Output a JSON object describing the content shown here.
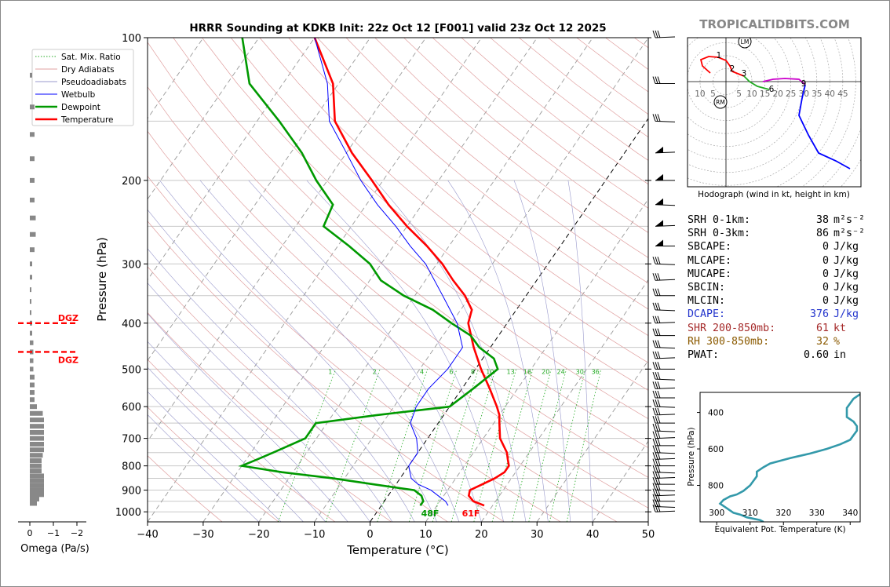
{
  "title": "HRRR Sounding at KDKB Init: 22z Oct 12 [F001] valid 23z Oct 12 2025",
  "watermark": "TROPICALTIDBITS.COM",
  "main": {
    "xlabel": "Temperature (°C)",
    "ylabel": "Pressure (hPa)",
    "xticks": [
      "−40",
      "−30",
      "−20",
      "−10",
      "0",
      "10",
      "20",
      "30",
      "40",
      "50"
    ],
    "yticks": [
      "100",
      "200",
      "300",
      "400",
      "500",
      "600",
      "700",
      "800",
      "900",
      "1000"
    ],
    "surface_temp": "61F",
    "surface_dew": "48F",
    "mixratio_labels": [
      "1",
      "2",
      "4",
      "6",
      "8",
      "10",
      "13",
      "16",
      "20",
      "24",
      "30",
      "36"
    ]
  },
  "legend": {
    "items": [
      "Sat. Mix. Ratio",
      "Dry Adiabats",
      "Pseudoadiabats",
      "Wetbulb",
      "Dewpoint",
      "Temperature"
    ]
  },
  "omega": {
    "xlabel": "Omega (Pa/s)",
    "xticks": [
      "0",
      "−1",
      "−2"
    ],
    "dgz_label": "DGZ"
  },
  "hodograph": {
    "caption": "Hodograph (wind in kt, height in km)",
    "rings": [
      "10",
      "5",
      "5",
      "10",
      "15",
      "20",
      "25",
      "30",
      "35",
      "40",
      "45"
    ],
    "height_labels": [
      "1",
      "2",
      "3",
      "6",
      "9"
    ],
    "markers": [
      "LM",
      "RM"
    ]
  },
  "theta_e": {
    "xlabel": "Equivalent Pot. Temperature (K)",
    "ylabel": "Pressure (hPa)",
    "xticks": [
      "300",
      "310",
      "320",
      "330",
      "340"
    ],
    "yticks": [
      "400",
      "600",
      "800"
    ]
  },
  "stats": [
    {
      "label": "SRH 0-1km:",
      "value": "38",
      "unit": "m²s⁻²",
      "color": "#000000"
    },
    {
      "label": "SRH 0-3km:",
      "value": "86",
      "unit": "m²s⁻²",
      "color": "#000000"
    },
    {
      "label": "SBCAPE:",
      "value": "0",
      "unit": "J/kg",
      "color": "#000000"
    },
    {
      "label": "MLCAPE:",
      "value": "0",
      "unit": "J/kg",
      "color": "#000000"
    },
    {
      "label": "MUCAPE:",
      "value": "0",
      "unit": "J/kg",
      "color": "#000000"
    },
    {
      "label": "SBCIN:",
      "value": "0",
      "unit": "J/kg",
      "color": "#000000"
    },
    {
      "label": "MLCIN:",
      "value": "0",
      "unit": "J/kg",
      "color": "#000000"
    },
    {
      "label": "DCAPE:",
      "value": "376",
      "unit": "J/kg",
      "color": "#2233cc"
    },
    {
      "label": "SHR 200-850mb:",
      "value": "61",
      "unit": "kt",
      "color": "#a52a2a"
    },
    {
      "label": "RH 300-850mb:",
      "value": "32",
      "unit": "%",
      "color": "#8b5a00"
    },
    {
      "label": "PWAT:",
      "value": "0.60",
      "unit": "in",
      "color": "#000000"
    }
  ],
  "colors": {
    "temperature": "#ff0000",
    "dewpoint": "#009900",
    "wetbulb": "#0000ff",
    "thetae": "#3399aa",
    "hodo_low": "#ff0000",
    "hodo_mid": "#cc00cc",
    "hodo_high": "#0000ff"
  },
  "chart_data": [
    {
      "type": "line",
      "subtype": "skew-T log-p",
      "title": "HRRR Sounding at KDKB Init: 22z Oct 12 [F001] valid 23z Oct 12 2025",
      "xlabel": "Temperature (°C)",
      "ylabel": "Pressure (hPa)",
      "xlim": [
        -40,
        50
      ],
      "ylim": [
        1050,
        100
      ],
      "y_scale": "log",
      "series": [
        {
          "name": "Temperature",
          "pressure": [
            970,
            950,
            925,
            900,
            875,
            850,
            825,
            800,
            775,
            750,
            700,
            650,
            625,
            600,
            550,
            500,
            450,
            400,
            375,
            350,
            325,
            300,
            275,
            250,
            225,
            200,
            175,
            150,
            125,
            100
          ],
          "values": [
            18.5,
            16,
            14.5,
            14,
            15.5,
            17,
            18,
            18,
            17,
            16,
            13,
            11,
            10,
            8.5,
            5,
            1,
            -3,
            -7,
            -8,
            -11,
            -15,
            -19,
            -24,
            -30,
            -36,
            -42,
            -49,
            -56,
            -61,
            -70
          ]
        },
        {
          "name": "Dewpoint",
          "pressure": [
            970,
            950,
            925,
            900,
            875,
            850,
            825,
            800,
            775,
            750,
            700,
            650,
            625,
            600,
            550,
            500,
            475,
            450,
            425,
            400,
            375,
            350,
            325,
            300,
            275,
            250,
            225,
            200,
            175,
            150,
            125,
            100
          ],
          "values": [
            7,
            7,
            6,
            4,
            -4,
            -12,
            -22,
            -30,
            -28,
            -26,
            -22,
            -22,
            -12,
            0,
            2,
            4,
            2,
            -2,
            -5,
            -10,
            -15,
            -22,
            -28,
            -32,
            -38,
            -45,
            -46,
            -52,
            -58,
            -66,
            -76,
            -83
          ]
        },
        {
          "name": "Wetbulb",
          "pressure": [
            970,
            950,
            925,
            900,
            875,
            850,
            825,
            800,
            775,
            750,
            700,
            650,
            600,
            550,
            500,
            475,
            450,
            400,
            350,
            300,
            275,
            250,
            225,
            200,
            175,
            150,
            125,
            100
          ],
          "values": [
            12,
            11,
            9,
            7,
            4,
            2,
            1,
            0,
            0,
            0,
            -2,
            -5,
            -6,
            -6,
            -5,
            -5,
            -5,
            -9,
            -15,
            -22,
            -27,
            -32,
            -38,
            -44,
            -50,
            -57,
            -62,
            -70
          ]
        }
      ]
    },
    {
      "type": "line",
      "title": "Hodograph",
      "caption": "Hodograph (wind in kt, height in km)",
      "xlim": [
        -15,
        50
      ],
      "ylim": [
        -40,
        18
      ]
    },
    {
      "type": "line",
      "title": "Equivalent Potential Temperature",
      "xlabel": "Equivalent Pot. Temperature (K)",
      "ylabel": "Pressure (hPa)",
      "xlim": [
        295,
        343
      ],
      "ylim": [
        1000,
        290
      ],
      "series": [
        {
          "name": "Theta-e",
          "pressure": [
            1000,
            990,
            975,
            960,
            950,
            925,
            900,
            880,
            860,
            850,
            830,
            800,
            775,
            750,
            725,
            700,
            680,
            650,
            625,
            600,
            575,
            550,
            525,
            500,
            475,
            450,
            425,
            400,
            375,
            350,
            325,
            300
          ],
          "values": [
            314,
            313,
            309,
            307,
            305,
            303,
            301,
            302,
            304,
            306,
            308,
            310,
            311,
            312,
            312,
            314,
            316,
            322,
            328,
            333,
            337,
            340,
            341,
            342,
            342,
            341,
            339,
            339,
            339,
            340,
            341,
            343
          ]
        }
      ]
    },
    {
      "type": "bar",
      "title": "Omega",
      "xlabel": "Omega (Pa/s)",
      "xlim": [
        0.5,
        -2.5
      ],
      "pressure": [
        960,
        940,
        920,
        900,
        880,
        860,
        840,
        820,
        800,
        780,
        760,
        740,
        720,
        700,
        680,
        660,
        640,
        620,
        600,
        580,
        560,
        540,
        520,
        500,
        480,
        460,
        440,
        420,
        400,
        380,
        360,
        340,
        320,
        300,
        280,
        260,
        240,
        220,
        200,
        180,
        160,
        140,
        120
      ],
      "values": [
        -0.3,
        -0.4,
        -0.6,
        -0.6,
        -0.6,
        -0.6,
        -0.6,
        -0.5,
        -0.5,
        -0.5,
        -0.55,
        -0.6,
        -0.6,
        -0.6,
        -0.6,
        -0.6,
        -0.6,
        -0.55,
        -0.3,
        -0.2,
        -0.2,
        -0.2,
        -0.2,
        -0.15,
        -0.15,
        -0.15,
        -0.15,
        -0.1,
        -0.1,
        -0.05,
        -0.05,
        -0.05,
        -0.1,
        -0.1,
        -0.2,
        -0.25,
        -0.25,
        -0.2,
        -0.2,
        -0.2,
        -0.2,
        -0.2,
        -0.1
      ]
    }
  ]
}
